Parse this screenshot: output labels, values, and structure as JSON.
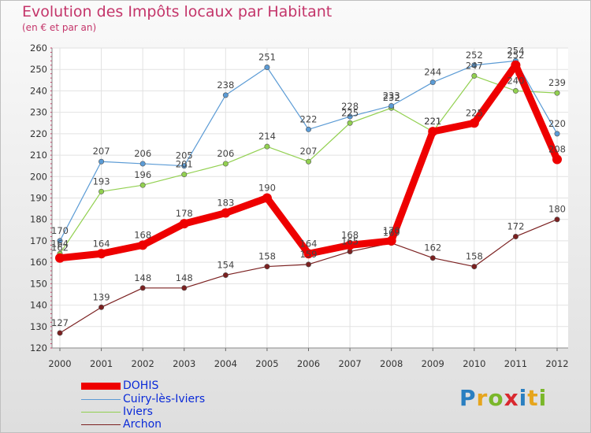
{
  "title": "Evolution des Impôts locaux par Habitant",
  "subtitle": "(en € et par an)",
  "logo": {
    "text": "Proxiti",
    "letter_colors": [
      "#2a7fc1",
      "#e6a51d",
      "#7ab72a",
      "#d9282f",
      "#2a7fc1",
      "#e6a51d",
      "#7ab72a"
    ]
  },
  "chart_data": {
    "type": "line",
    "title": "Evolution des Impôts locaux par Habitant",
    "subtitle": "(en € et par an)",
    "xlabel": "",
    "ylabel": "",
    "ylim": [
      120,
      260
    ],
    "yticks": [
      120,
      130,
      140,
      150,
      160,
      170,
      180,
      190,
      200,
      210,
      220,
      230,
      240,
      250,
      260
    ],
    "grid": true,
    "legend_position": "bottom-left",
    "categories": [
      "2000",
      "2001",
      "2002",
      "2003",
      "2004",
      "2005",
      "2006",
      "2007",
      "2008",
      "2009",
      "2010",
      "2011",
      "2012"
    ],
    "series": [
      {
        "name": "DOHIS",
        "color": "#ee0000",
        "values": [
          162,
          164,
          168,
          178,
          183,
          190,
          164,
          168,
          170,
          221,
          225,
          252,
          208
        ]
      },
      {
        "name": "Cuiry-lès-Iviers",
        "color": "#5b9bd5",
        "values": [
          170,
          207,
          206,
          205,
          238,
          251,
          222,
          228,
          233,
          244,
          252,
          254,
          220
        ]
      },
      {
        "name": "Iviers",
        "color": "#92d050",
        "values": [
          164,
          193,
          196,
          201,
          206,
          214,
          207,
          225,
          232,
          221,
          247,
          240,
          239
        ]
      },
      {
        "name": "Archon",
        "color": "#7b2020",
        "values": [
          127,
          139,
          148,
          148,
          154,
          158,
          159,
          165,
          169,
          162,
          158,
          172,
          180
        ]
      }
    ]
  }
}
